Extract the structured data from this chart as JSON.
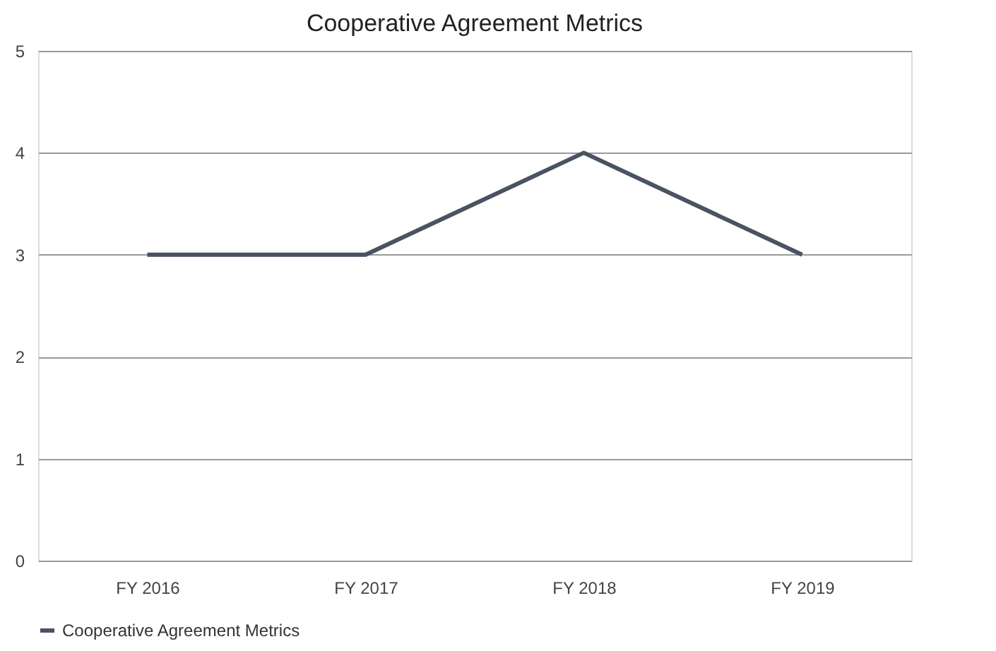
{
  "chart_data": {
    "type": "line",
    "title": "Cooperative Agreement Metrics",
    "categories": [
      "FY 2016",
      "FY 2017",
      "FY 2018",
      "FY 2019"
    ],
    "series": [
      {
        "name": "Cooperative Agreement Metrics",
        "color": "#4a5361",
        "values": [
          3,
          3,
          4,
          3
        ]
      }
    ],
    "ylim": [
      0,
      5
    ],
    "yticks": [
      0,
      1,
      2,
      3,
      4,
      5
    ],
    "grid": "y",
    "legend": "bottom",
    "marker": "none",
    "line_style": "solid"
  }
}
